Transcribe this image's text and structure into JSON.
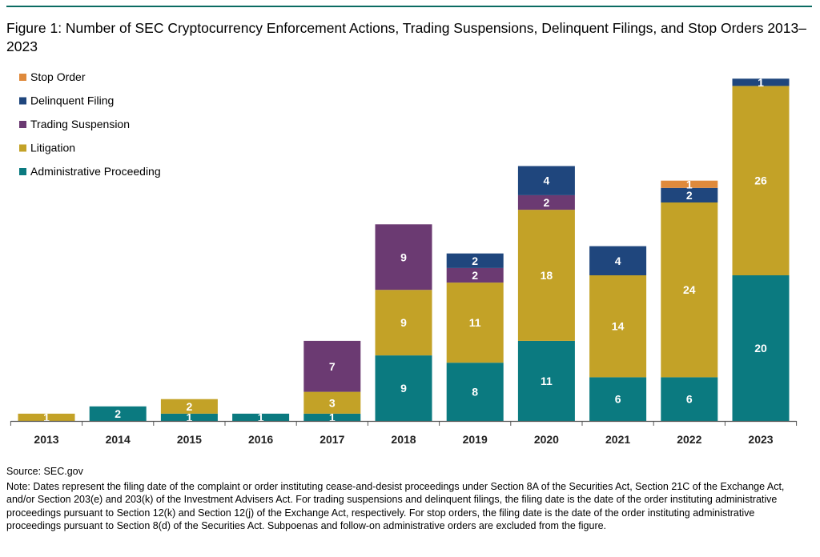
{
  "title": "Figure 1: Number of SEC Cryptocurrency Enforcement Actions, Trading Suspensions, Delinquent Filings, and Stop Orders 2013–2023",
  "source": "Source: SEC.gov",
  "note": "Note: Dates represent the filing date of the complaint or order instituting cease-and-desist proceedings under Section 8A of the Securities Act, Section 21C of the Exchange Act, and/or Section 203(e) and 203(k) of the Investment Advisers Act. For trading suspensions and delinquent filings, the filing date is the date of the order instituting administrative proceedings pursuant to Section 12(k) and Section 12(j) of the Exchange Act, respectively. For stop orders, the filing date is the date of the order instituting administrative proceedings pursuant to Section 8(d) of the Securities Act. Subpoenas and follow-on administrative orders are excluded from the figure.",
  "chart_data": {
    "type": "bar",
    "stacked": true,
    "categories": [
      "2013",
      "2014",
      "2015",
      "2016",
      "2017",
      "2018",
      "2019",
      "2020",
      "2021",
      "2022",
      "2023"
    ],
    "series": [
      {
        "name": "Administrative Proceeding",
        "color": "#0b7a80",
        "values": [
          0,
          2,
          1,
          1,
          1,
          9,
          8,
          11,
          6,
          6,
          20
        ],
        "labels": [
          "",
          "2",
          "1",
          "1",
          "1",
          "9",
          "8",
          "11",
          "6",
          "6",
          "20"
        ]
      },
      {
        "name": "Litigation",
        "color": "#c3a227",
        "values": [
          1,
          0,
          2,
          0,
          3,
          9,
          11,
          18,
          14,
          24,
          26
        ],
        "labels": [
          "1",
          "",
          "2",
          "",
          "3",
          "9",
          "11",
          "18",
          "14",
          "24",
          "26"
        ]
      },
      {
        "name": "Trading Suspension",
        "color": "#6b3a72",
        "values": [
          0,
          0,
          0,
          0,
          7,
          9,
          2,
          2,
          0,
          0,
          0
        ],
        "labels": [
          "",
          "",
          "",
          "",
          "7",
          "9",
          "2",
          "2",
          "",
          "",
          ""
        ]
      },
      {
        "name": "Delinquent Filing",
        "color": "#1f467d",
        "values": [
          0,
          0,
          0,
          0,
          0,
          0,
          2,
          4,
          4,
          2,
          1
        ],
        "labels": [
          "",
          "",
          "",
          "",
          "",
          "",
          "2",
          "4",
          "4",
          "2",
          "1"
        ]
      },
      {
        "name": "Stop Order",
        "color": "#df8a3c",
        "values": [
          0,
          0,
          0,
          0,
          0,
          0,
          0,
          0,
          0,
          1,
          0
        ],
        "labels": [
          "",
          "",
          "",
          "",
          "",
          "",
          "",
          "",
          "",
          "1",
          ""
        ]
      }
    ],
    "legend_order": [
      "Stop Order",
      "Delinquent Filing",
      "Trading Suspension",
      "Litigation",
      "Administrative Proceeding"
    ],
    "legend_position": "top-left",
    "ylim": [
      0,
      47
    ],
    "grid": false,
    "xlabel": "",
    "ylabel": ""
  }
}
